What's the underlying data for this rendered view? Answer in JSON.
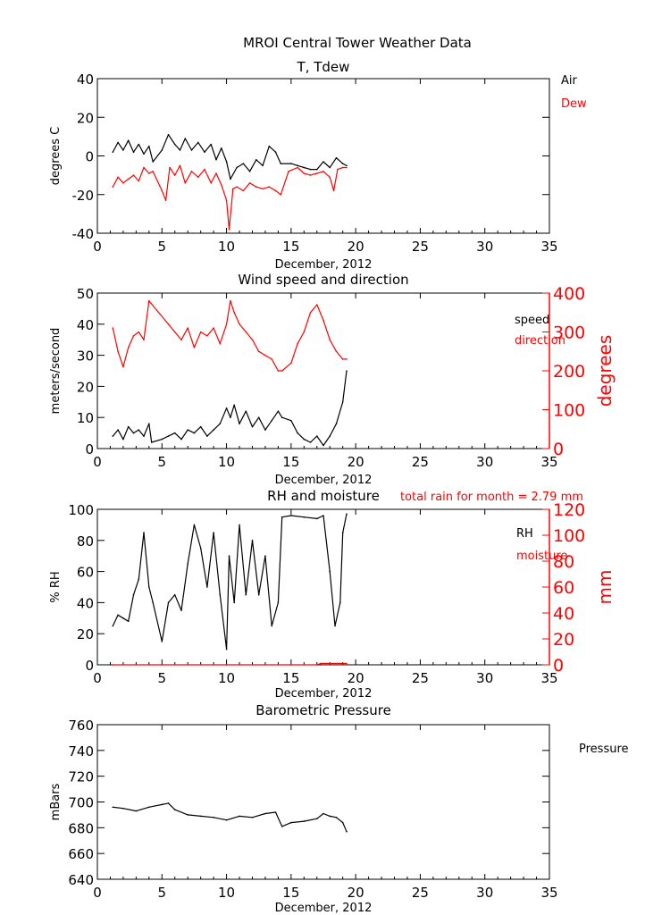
{
  "page": {
    "title": "MROI Central Tower Weather Data"
  },
  "chart_data": [
    {
      "type": "line",
      "title": "T, Tdew",
      "xlabel": "December, 2012",
      "ylabel": "degrees C",
      "xlim": [
        0,
        35
      ],
      "ylim": [
        -40,
        40
      ],
      "xticks": [
        0,
        5,
        10,
        15,
        20,
        25,
        30,
        35
      ],
      "yticks": [
        -40,
        -20,
        0,
        20,
        40
      ],
      "legend_placement": "right",
      "series": [
        {
          "name": "Air",
          "color": "#000000",
          "x": [
            1.2,
            1.6,
            2.0,
            2.4,
            2.8,
            3.2,
            3.6,
            4.0,
            4.3,
            5.0,
            5.5,
            6.0,
            6.4,
            6.8,
            7.3,
            7.8,
            8.3,
            8.8,
            9.2,
            9.6,
            10.0,
            10.3,
            10.8,
            11.3,
            11.8,
            12.3,
            12.8,
            13.3,
            13.8,
            14.2,
            15.0,
            15.5,
            16.0,
            16.5,
            17.0,
            17.5,
            18.0,
            18.5,
            19.0,
            19.3
          ],
          "y": [
            2,
            7,
            3,
            8,
            2,
            6,
            1,
            5,
            -3,
            3,
            11,
            6,
            3,
            9,
            3,
            7,
            2,
            6,
            -2,
            4,
            -3,
            -12,
            -6,
            -4,
            -8,
            -2,
            -5,
            5,
            2,
            -4,
            -4,
            -5,
            -6,
            -7,
            -7,
            -3,
            -6,
            -1,
            -4,
            -5
          ]
        },
        {
          "name": "Dew",
          "color": "#ff0000",
          "x": [
            1.2,
            1.6,
            2.0,
            2.4,
            2.8,
            3.2,
            3.6,
            4.0,
            4.3,
            5.0,
            5.3,
            5.6,
            6.0,
            6.4,
            6.8,
            7.3,
            7.8,
            8.3,
            8.8,
            9.2,
            9.6,
            10.0,
            10.2,
            10.5,
            10.8,
            11.3,
            11.8,
            12.3,
            12.8,
            13.3,
            13.8,
            14.2,
            14.8,
            15.5,
            16.0,
            16.5,
            17.0,
            17.5,
            18.0,
            18.3,
            18.6,
            19.0,
            19.3
          ],
          "y": [
            -16,
            -11,
            -14,
            -12,
            -10,
            -13,
            -6,
            -9,
            -8,
            -18,
            -23,
            -6,
            -10,
            -5,
            -14,
            -8,
            -11,
            -7,
            -14,
            -9,
            -15,
            -23,
            -38,
            -17,
            -16,
            -18,
            -14,
            -16,
            -17,
            -16,
            -18,
            -20,
            -8,
            -6,
            -9,
            -10,
            -9,
            -8,
            -11,
            -18,
            -7,
            -6,
            -6
          ]
        }
      ]
    },
    {
      "type": "line",
      "title": "Wind speed and direction",
      "xlabel": "December, 2012",
      "ylabel": "meters/second",
      "ylabel_right": "degrees",
      "xlim": [
        0,
        35
      ],
      "ylim": [
        0,
        50
      ],
      "ylim_right": [
        0,
        400
      ],
      "xticks": [
        0,
        5,
        10,
        15,
        20,
        25,
        30,
        35
      ],
      "yticks": [
        0,
        10,
        20,
        30,
        40,
        50
      ],
      "yticks_right": [
        0,
        100,
        200,
        300,
        400
      ],
      "legend_placement": "right",
      "series": [
        {
          "name": "speed",
          "color": "#000000",
          "axis": "left",
          "x": [
            1.2,
            1.6,
            2.0,
            2.4,
            2.8,
            3.2,
            3.6,
            4.0,
            4.2,
            5.0,
            5.5,
            6.0,
            6.5,
            7.0,
            7.5,
            8.0,
            8.5,
            9.0,
            9.5,
            10.0,
            10.3,
            10.6,
            11.0,
            11.5,
            12.0,
            12.5,
            13.0,
            13.5,
            14.0,
            14.3,
            15.0,
            15.5,
            16.0,
            16.5,
            17.0,
            17.5,
            18.0,
            18.5,
            19.0,
            19.3
          ],
          "y": [
            4,
            6,
            3,
            7,
            5,
            6,
            4,
            8,
            2,
            3,
            4,
            5,
            3,
            6,
            5,
            7,
            4,
            6,
            8,
            13,
            10,
            14,
            8,
            12,
            7,
            10,
            6,
            9,
            12,
            10,
            9,
            5,
            3,
            2,
            4,
            1,
            4,
            8,
            15,
            25
          ]
        },
        {
          "name": "direction",
          "color": "#ff0000",
          "axis": "right",
          "x": [
            1.2,
            1.6,
            2.0,
            2.4,
            2.8,
            3.2,
            3.6,
            4.0,
            5.5,
            6.0,
            6.5,
            7.0,
            7.5,
            8.0,
            8.5,
            9.0,
            9.5,
            10.0,
            10.3,
            10.6,
            11.0,
            11.5,
            12.0,
            12.5,
            13.0,
            13.5,
            14.0,
            14.3,
            15.0,
            15.5,
            16.0,
            16.5,
            17.0,
            17.5,
            18.0,
            18.5,
            19.0,
            19.3
          ],
          "y": [
            310,
            250,
            210,
            260,
            290,
            300,
            280,
            380,
            320,
            300,
            280,
            310,
            260,
            300,
            290,
            310,
            270,
            320,
            380,
            350,
            320,
            300,
            280,
            250,
            240,
            230,
            200,
            200,
            220,
            270,
            300,
            350,
            370,
            330,
            280,
            250,
            230,
            230
          ]
        }
      ]
    },
    {
      "type": "line",
      "title": "RH and moisture",
      "annotation": "total rain for month =     2.79 mm",
      "xlabel": "December, 2012",
      "ylabel": "% RH",
      "ylabel_right": "mm",
      "xlim": [
        0,
        35
      ],
      "ylim": [
        0,
        100
      ],
      "ylim_right": [
        0,
        120
      ],
      "xticks": [
        0,
        5,
        10,
        15,
        20,
        25,
        30,
        35
      ],
      "yticks": [
        0,
        20,
        40,
        60,
        80,
        100
      ],
      "yticks_right": [
        0,
        20,
        40,
        60,
        80,
        100,
        120
      ],
      "legend_placement": "right",
      "series": [
        {
          "name": "RH",
          "color": "#000000",
          "axis": "left",
          "x": [
            1.2,
            1.6,
            2.0,
            2.4,
            2.8,
            3.2,
            3.6,
            4.0,
            4.3,
            5.0,
            5.5,
            6.0,
            6.5,
            7.0,
            7.5,
            8.0,
            8.5,
            9.0,
            9.5,
            10.0,
            10.2,
            10.6,
            11.0,
            11.5,
            12.0,
            12.5,
            13.0,
            13.5,
            14.0,
            14.3,
            15.0,
            16.0,
            17.0,
            17.5,
            18.0,
            18.4,
            18.8,
            19.0,
            19.3
          ],
          "y": [
            25,
            32,
            30,
            28,
            45,
            55,
            85,
            50,
            40,
            15,
            40,
            45,
            35,
            65,
            90,
            75,
            50,
            85,
            45,
            10,
            70,
            40,
            90,
            45,
            80,
            45,
            70,
            25,
            40,
            95,
            96,
            95,
            94,
            96,
            60,
            25,
            40,
            85,
            97
          ]
        },
        {
          "name": "moisture",
          "color": "#ff0000",
          "axis": "right",
          "x": [
            1.2,
            5.0,
            10.0,
            15.0,
            17.0,
            17.3,
            19.3
          ],
          "y": [
            0,
            0,
            0,
            0,
            0,
            1,
            1
          ]
        }
      ]
    },
    {
      "type": "line",
      "title": "Barometric Pressure",
      "xlabel": "December, 2012",
      "ylabel": "mBars",
      "xlim": [
        0,
        35
      ],
      "ylim": [
        640,
        760
      ],
      "xticks": [
        0,
        5,
        10,
        15,
        20,
        25,
        30,
        35
      ],
      "yticks": [
        640,
        660,
        680,
        700,
        720,
        740,
        760
      ],
      "legend_placement": "right",
      "series": [
        {
          "name": "Pressure",
          "color": "#000000",
          "x": [
            1.2,
            2.0,
            3.0,
            4.0,
            5.0,
            5.5,
            6.0,
            7.0,
            8.0,
            9.0,
            10.0,
            11.0,
            12.0,
            13.0,
            13.8,
            14.3,
            15.0,
            16.0,
            17.0,
            17.5,
            18.0,
            18.5,
            19.0,
            19.3
          ],
          "y": [
            696,
            695,
            693,
            696,
            698,
            699,
            694,
            690,
            689,
            688,
            686,
            689,
            688,
            691,
            692,
            681,
            684,
            685,
            687,
            691,
            689,
            688,
            684,
            677
          ]
        }
      ]
    }
  ]
}
